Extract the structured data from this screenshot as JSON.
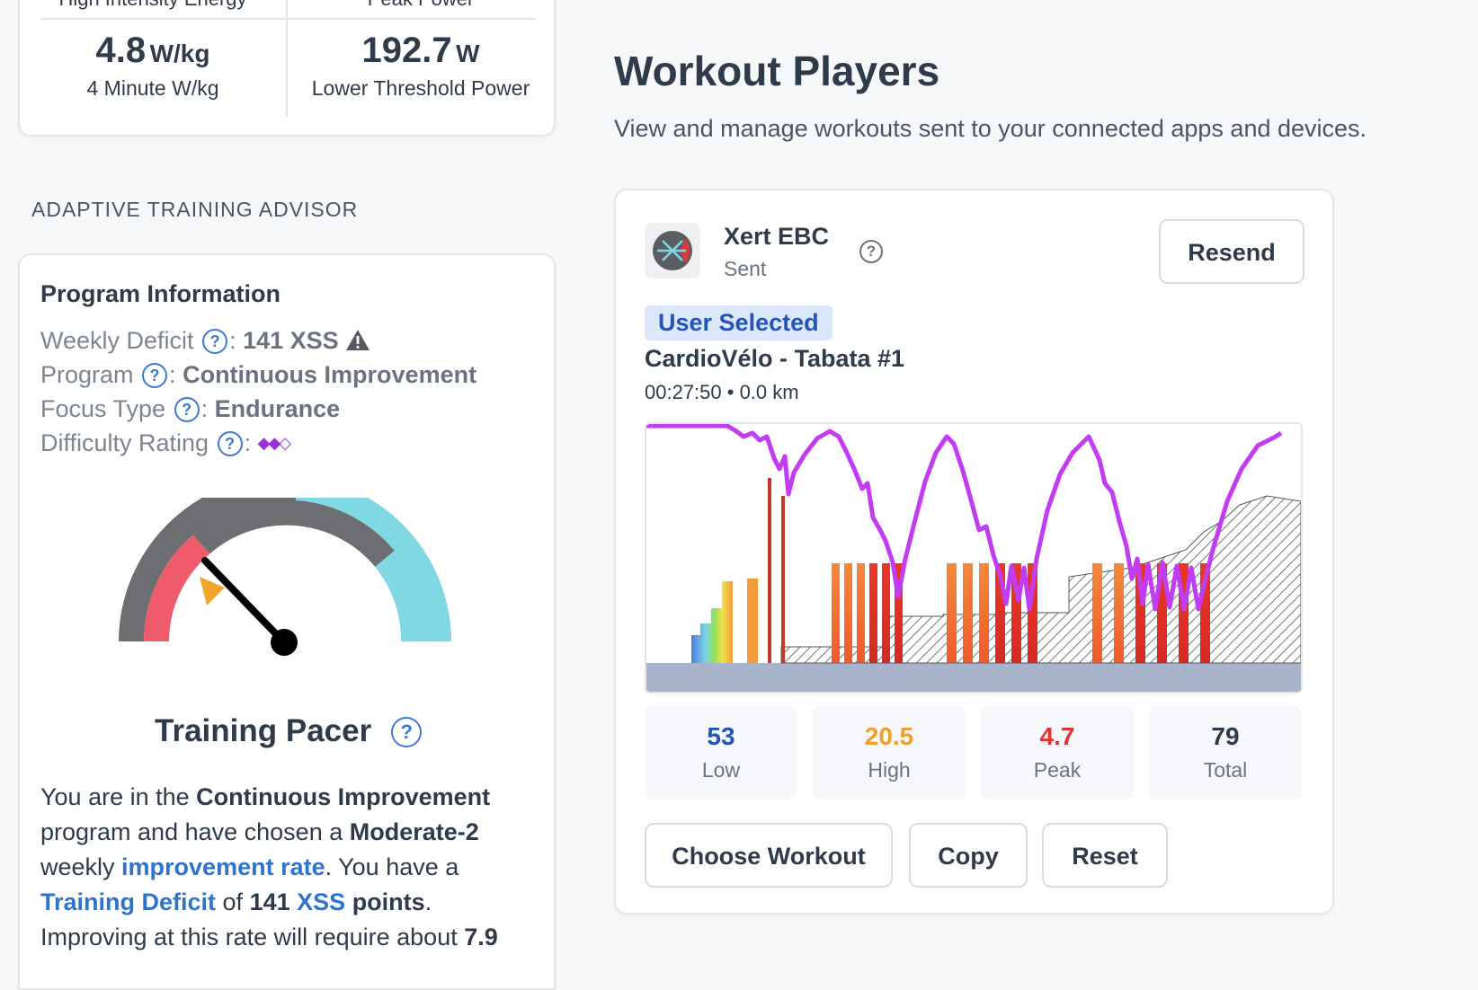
{
  "metrics": {
    "top_left_label": "High Intensity Energy",
    "top_right_label": "Peak Power",
    "left": {
      "value": "4.8",
      "unit": "W/kg",
      "label": "4 Minute W/kg"
    },
    "right": {
      "value": "192.7",
      "unit": "W",
      "label": "Lower Threshold Power"
    }
  },
  "advisor": {
    "heading": "ADAPTIVE TRAINING ADVISOR",
    "program_title": "Program Information",
    "rows": [
      {
        "label": "Weekly Deficit",
        "sep": ":",
        "value": "141 XSS"
      },
      {
        "label": "Program",
        "sep": ":",
        "value": "Continuous Improvement"
      },
      {
        "label": "Focus Type",
        "sep": ":",
        "value": "Endurance"
      },
      {
        "label": "Difficulty Rating",
        "sep": ":",
        "value": "◆◆◇"
      }
    ],
    "pacer_title": "Training Pacer",
    "pacer_text": {
      "p1": "You are in the ",
      "b1": "Continuous Improvement",
      "p2": " program and have chosen a ",
      "b2": "Moderate-2",
      "p3": " weekly ",
      "l1": "improvement rate",
      "p4": ". You have a ",
      "l2": "Training Deficit",
      "p5": " of ",
      "b3": "141",
      "p6": " ",
      "l3": "XSS",
      "p7": " ",
      "b4": "points",
      "p8": ". Improving at this rate will require about ",
      "b5": "7.9"
    },
    "colors": {
      "gauge_dark": "#6d6e72",
      "gauge_red": "#ef5b6b",
      "gauge_cyan": "#7fd8e2",
      "marker": "#f1a52a",
      "link": "#2f74cc",
      "warning": "#555b63"
    }
  },
  "players": {
    "title": "Workout Players",
    "subtitle": "View and manage workouts sent to your connected apps and devices.",
    "app_name": "Xert EBC",
    "app_status": "Sent",
    "resend_label": "Resend",
    "badge": "User Selected",
    "workout_name": "CardioVélo - Tabata #1",
    "workout_meta": "00:27:50 • 0.0 km",
    "stats": [
      {
        "value": "53",
        "label": "Low",
        "color": "#2454b8"
      },
      {
        "value": "20.5",
        "label": "High",
        "color": "#f0a02a"
      },
      {
        "value": "4.7",
        "label": "Peak",
        "color": "#e5322d"
      },
      {
        "value": "79",
        "label": "Total",
        "color": "#2f3b4a"
      }
    ],
    "buttons": {
      "choose": "Choose Workout",
      "copy": "Copy",
      "reset": "Reset"
    }
  }
}
